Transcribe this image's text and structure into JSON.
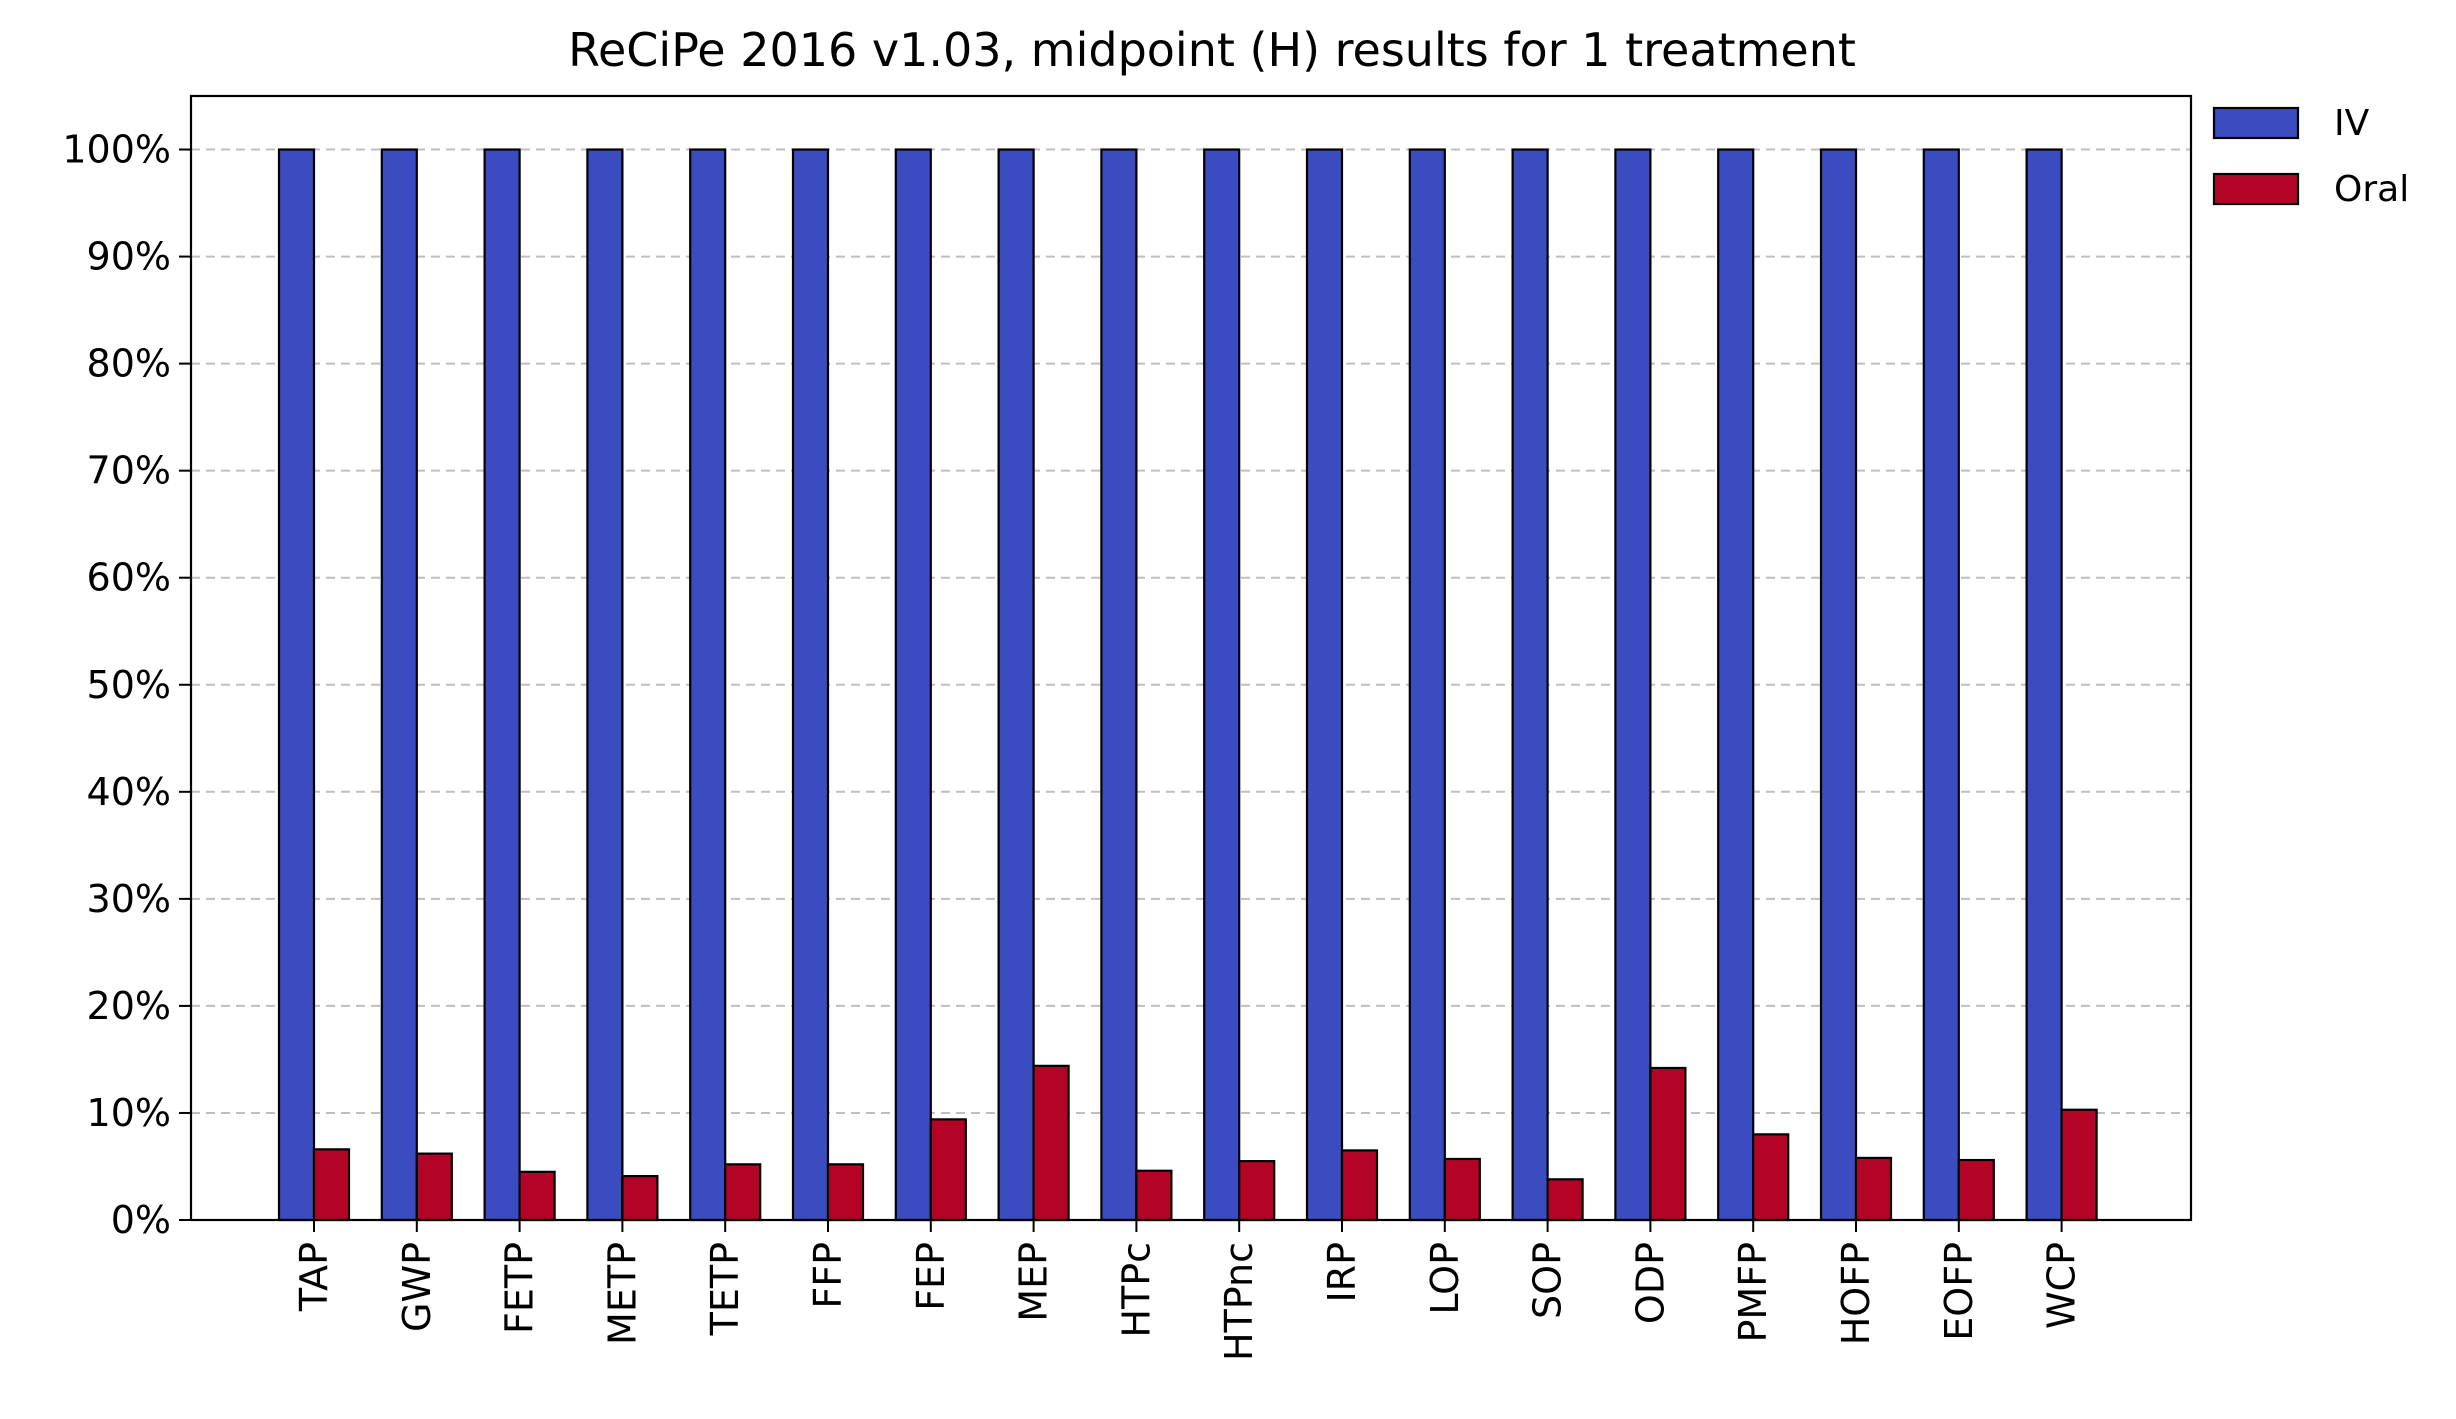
{
  "chart_data": {
    "type": "bar",
    "title": "ReCiPe 2016 v1.03, midpoint (H) results for 1 treatment",
    "xlabel": "",
    "ylabel": "",
    "categories": [
      "TAP",
      "GWP",
      "FETP",
      "METP",
      "TETP",
      "FFP",
      "FEP",
      "MEP",
      "HTPc",
      "HTPnc",
      "IRP",
      "LOP",
      "SOP",
      "ODP",
      "PMFP",
      "HOFP",
      "EOFP",
      "WCP"
    ],
    "series": [
      {
        "name": "IV",
        "color": "#3b4cc0",
        "values": [
          100,
          100,
          100,
          100,
          100,
          100,
          100,
          100,
          100,
          100,
          100,
          100,
          100,
          100,
          100,
          100,
          100,
          100
        ]
      },
      {
        "name": "Oral",
        "color": "#b40426",
        "values": [
          6.6,
          6.2,
          4.5,
          4.1,
          5.2,
          5.2,
          9.4,
          14.4,
          4.6,
          5.5,
          6.5,
          5.7,
          3.8,
          14.2,
          8.0,
          5.8,
          5.6,
          10.3
        ]
      }
    ],
    "ylim": [
      0,
      105
    ],
    "yticks": [
      0,
      10,
      20,
      30,
      40,
      50,
      60,
      70,
      80,
      90,
      100
    ],
    "ytick_labels": [
      "0%",
      "10%",
      "20%",
      "30%",
      "40%",
      "50%",
      "60%",
      "70%",
      "80%",
      "90%",
      "100%"
    ],
    "grid": "y-dashed",
    "legend": "outside-top-right"
  }
}
